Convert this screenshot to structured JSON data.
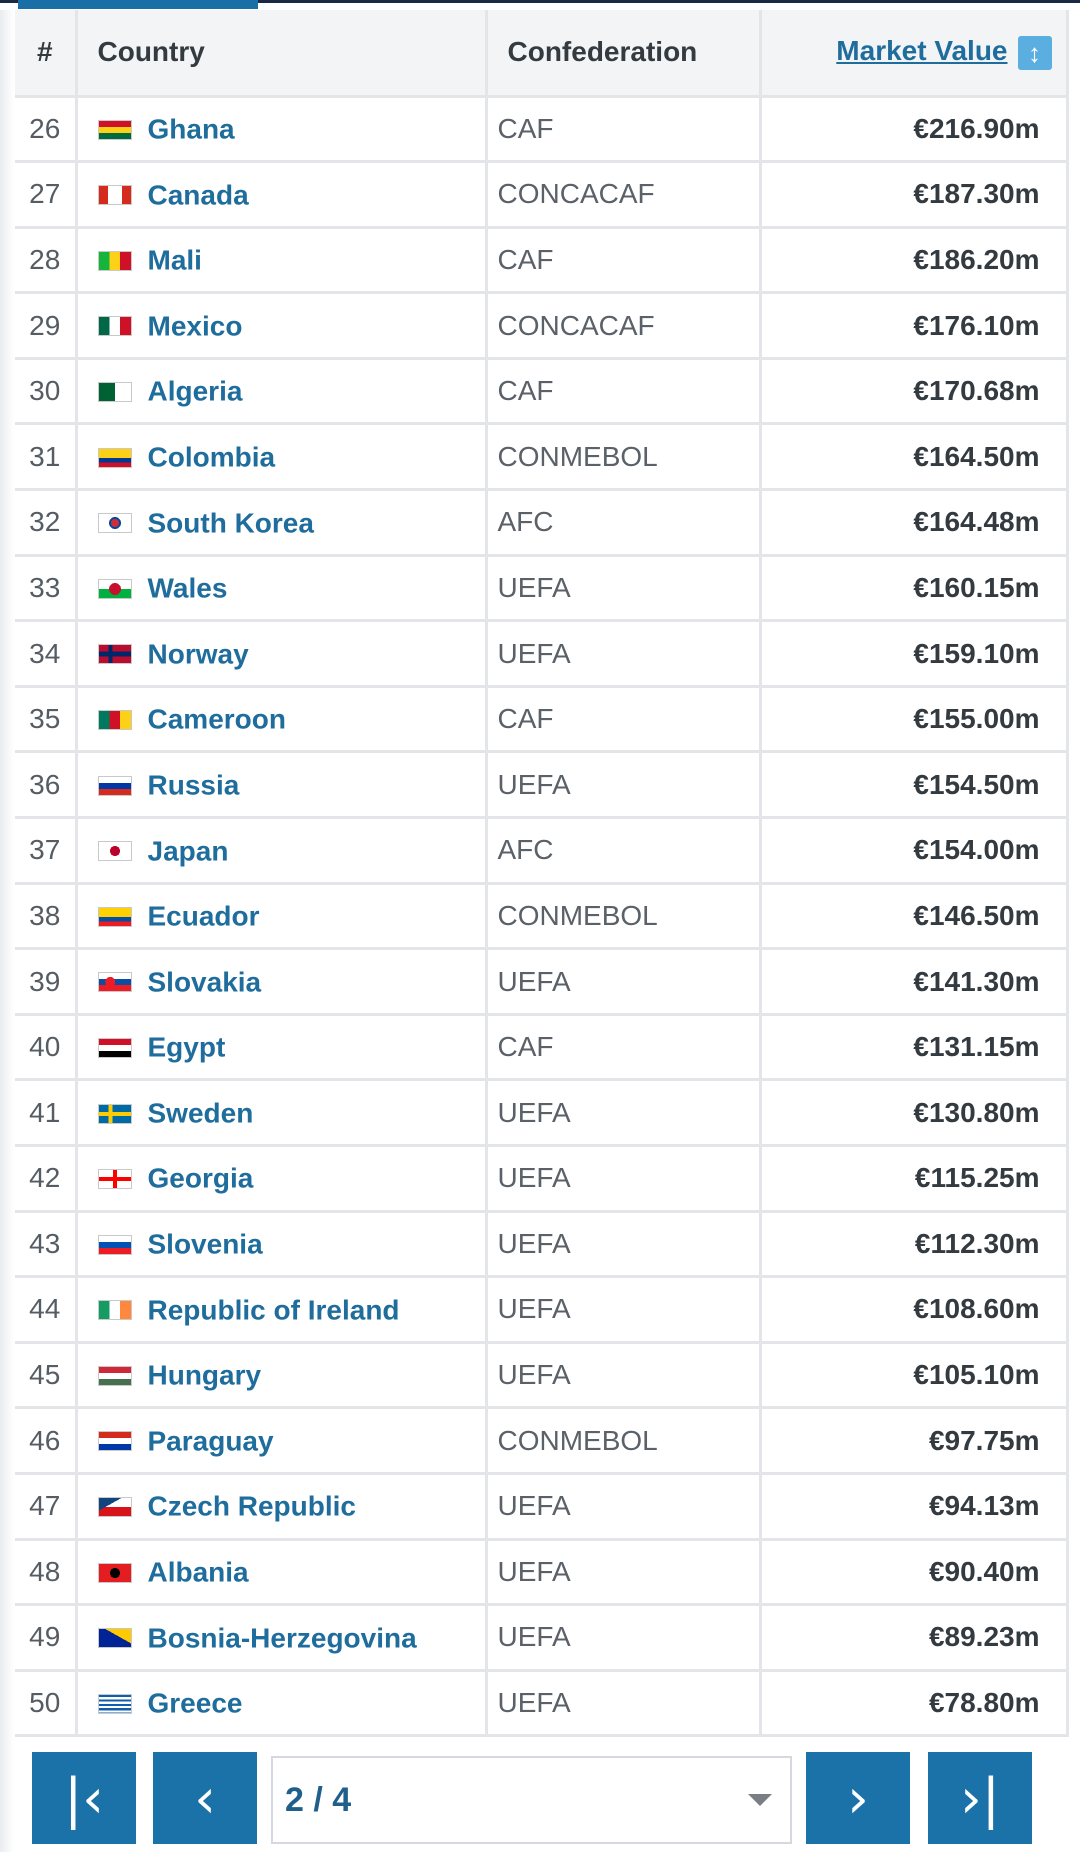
{
  "table": {
    "headers": {
      "rank": "#",
      "country": "Country",
      "confederation": "Confederation",
      "market_value": "Market Value"
    },
    "sort_icon": "↕",
    "rows": [
      {
        "rank": "26",
        "country": "Ghana",
        "confederation": "CAF",
        "market_value": "€216.90m",
        "flag": "linear-gradient(#ce1126 0 33%, #fcd116 33% 66%, #006b3f 66%)"
      },
      {
        "rank": "27",
        "country": "Canada",
        "confederation": "CONCACAF",
        "market_value": "€187.30m",
        "flag": "linear-gradient(to right, #d52b1e 0 28%, #ffffff 28% 72%, #d52b1e 72%)"
      },
      {
        "rank": "28",
        "country": "Mali",
        "confederation": "CAF",
        "market_value": "€186.20m",
        "flag": "linear-gradient(to right, #14b53a 0 33%, #fcd116 33% 66%, #ce1126 66%)"
      },
      {
        "rank": "29",
        "country": "Mexico",
        "confederation": "CONCACAF",
        "market_value": "€176.10m",
        "flag": "linear-gradient(to right, #006847 0 33%, #ffffff 33% 66%, #ce1126 66%)"
      },
      {
        "rank": "30",
        "country": "Algeria",
        "confederation": "CAF",
        "market_value": "€170.68m",
        "flag": "linear-gradient(to right, #006233 0 50%, #ffffff 50%)"
      },
      {
        "rank": "31",
        "country": "Colombia",
        "confederation": "CONMEBOL",
        "market_value": "€164.50m",
        "flag": "linear-gradient(#fcd116 0 50%, #003893 50% 75%, #ce1126 75%)"
      },
      {
        "rank": "32",
        "country": "South Korea",
        "confederation": "AFC",
        "market_value": "€164.48m",
        "flag": "radial-gradient(circle, #cd2e3a 0 4px, #0047a0 4px 6px, #ffffff 6px)"
      },
      {
        "rank": "33",
        "country": "Wales",
        "confederation": "UEFA",
        "market_value": "€160.15m",
        "flag": "radial-gradient(circle, #c8102e 0 6px, transparent 6px), linear-gradient(#ffffff 0 50%, #00b140 50%)"
      },
      {
        "rank": "34",
        "country": "Norway",
        "confederation": "UEFA",
        "market_value": "€159.10m",
        "flag": "linear-gradient(transparent 35%, #002868 35% 65%, transparent 65%), linear-gradient(to right, #ba0c2f 0 30%, #002868 30% 42%, #ba0c2f 42%)"
      },
      {
        "rank": "35",
        "country": "Cameroon",
        "confederation": "CAF",
        "market_value": "€155.00m",
        "flag": "linear-gradient(to right, #007a5e 0 33%, #ce1126 33% 66%, #fcd116 66%)"
      },
      {
        "rank": "36",
        "country": "Russia",
        "confederation": "UEFA",
        "market_value": "€154.50m",
        "flag": "linear-gradient(#ffffff 0 33%, #0039a6 33% 66%, #d52b1e 66%)"
      },
      {
        "rank": "37",
        "country": "Japan",
        "confederation": "AFC",
        "market_value": "€154.00m",
        "flag": "radial-gradient(circle, #bc002d 0 5px, #ffffff 5px)"
      },
      {
        "rank": "38",
        "country": "Ecuador",
        "confederation": "CONMEBOL",
        "market_value": "€146.50m",
        "flag": "linear-gradient(#ffd100 0 50%, #034ea2 50% 75%, #ed1c24 75%)"
      },
      {
        "rank": "39",
        "country": "Slovakia",
        "confederation": "UEFA",
        "market_value": "€141.30m",
        "flag": "radial-gradient(circle at 35% 50%, #ee1c25 0 5px, transparent 5px), linear-gradient(#ffffff 0 33%, #0b4ea2 33% 66%, #ee1c25 66%)"
      },
      {
        "rank": "40",
        "country": "Egypt",
        "confederation": "CAF",
        "market_value": "€131.15m",
        "flag": "linear-gradient(#ce1126 0 33%, #ffffff 33% 66%, #000000 66%)"
      },
      {
        "rank": "41",
        "country": "Sweden",
        "confederation": "UEFA",
        "market_value": "€130.80m",
        "flag": "linear-gradient(transparent 40%, #fecc00 40% 60%, transparent 60%), linear-gradient(to right, #006aa7 0 30%, #fecc00 30% 42%, #006aa7 42%)"
      },
      {
        "rank": "42",
        "country": "Georgia",
        "confederation": "UEFA",
        "market_value": "€115.25m",
        "flag": "linear-gradient(transparent 40%, #ff0000 40% 60%, transparent 60%), linear-gradient(to right, #ffffff 0 44%, #ff0000 44% 56%, #ffffff 56%)"
      },
      {
        "rank": "43",
        "country": "Slovenia",
        "confederation": "UEFA",
        "market_value": "€112.30m",
        "flag": "linear-gradient(#ffffff 0 33%, #0052b4 33% 66%, #ed1c24 66%)"
      },
      {
        "rank": "44",
        "country": "Republic of Ireland",
        "confederation": "UEFA",
        "market_value": "€108.60m",
        "flag": "linear-gradient(to right, #169b62 0 33%, #ffffff 33% 66%, #ff883e 66%)"
      },
      {
        "rank": "45",
        "country": "Hungary",
        "confederation": "UEFA",
        "market_value": "€105.10m",
        "flag": "linear-gradient(#ce2939 0 33%, #ffffff 33% 66%, #477050 66%)"
      },
      {
        "rank": "46",
        "country": "Paraguay",
        "confederation": "CONMEBOL",
        "market_value": "€97.75m",
        "flag": "linear-gradient(#d52b1e 0 33%, #ffffff 33% 66%, #0038a8 66%)"
      },
      {
        "rank": "47",
        "country": "Czech Republic",
        "confederation": "UEFA",
        "market_value": "€94.13m",
        "flag": "linear-gradient(to bottom right, #11457e 0 35%, transparent 35%), linear-gradient(#ffffff 0 50%, #d7141a 50%)"
      },
      {
        "rank": "48",
        "country": "Albania",
        "confederation": "UEFA",
        "market_value": "€90.40m",
        "flag": "radial-gradient(circle, #000000 0 5px, #e41e20 5px)"
      },
      {
        "rank": "49",
        "country": "Bosnia-Herzegovina",
        "confederation": "UEFA",
        "market_value": "€89.23m",
        "flag": "linear-gradient(to bottom left, #fecb00 0 40%, #002395 40%)"
      },
      {
        "rank": "50",
        "country": "Greece",
        "confederation": "UEFA",
        "market_value": "€78.80m",
        "flag": "repeating-linear-gradient(#0d5eaf 0 2.2px, #ffffff 2.2px 4.4px)"
      }
    ]
  },
  "pagination": {
    "first_icon": "first-page-icon",
    "prev_icon": "previous-page-icon",
    "next_icon": "next-page-icon",
    "last_icon": "last-page-icon",
    "first_glyph": "|‹",
    "prev_glyph": "‹",
    "next_glyph": "›",
    "last_glyph": "›|",
    "current_page": "2 / 4"
  },
  "colors": {
    "accent": "#1a72a8",
    "link": "#1f6d9c",
    "header_bg": "#f3f4f6",
    "navy": "#1b2a44"
  }
}
